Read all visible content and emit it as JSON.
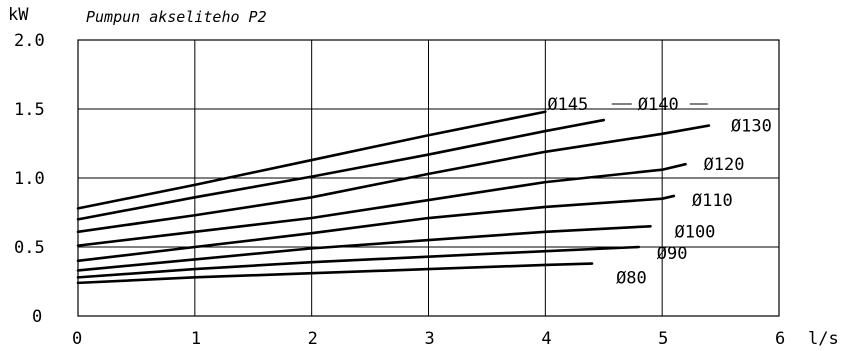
{
  "chart_data": {
    "type": "line",
    "title": "Pumpun akseliteho P2",
    "ylabel": "kW",
    "xlabel": "l/s",
    "xlim": [
      0,
      6
    ],
    "ylim": [
      0,
      2.0
    ],
    "grid": true,
    "x_ticks": [
      "0",
      "1",
      "2",
      "3",
      "4",
      "5",
      "6"
    ],
    "y_ticks": [
      "0",
      "0.5",
      "1.0",
      "1.5",
      "2.0"
    ],
    "series": [
      {
        "name": "Ø145",
        "x": [
          0,
          1,
          2,
          3,
          4
        ],
        "y": [
          0.78,
          0.95,
          1.13,
          1.31,
          1.48
        ]
      },
      {
        "name": "Ø140",
        "x": [
          0,
          1,
          2,
          3,
          4,
          4.5
        ],
        "y": [
          0.7,
          0.86,
          1.01,
          1.17,
          1.34,
          1.42
        ]
      },
      {
        "name": "Ø130",
        "x": [
          0,
          1,
          2,
          3,
          4,
          5,
          5.4
        ],
        "y": [
          0.61,
          0.73,
          0.86,
          1.03,
          1.19,
          1.32,
          1.38
        ]
      },
      {
        "name": "Ø120",
        "x": [
          0,
          1,
          2,
          3,
          4,
          5,
          5.2
        ],
        "y": [
          0.51,
          0.61,
          0.71,
          0.84,
          0.97,
          1.06,
          1.1
        ]
      },
      {
        "name": "Ø110",
        "x": [
          0,
          1,
          2,
          3,
          4,
          5,
          5.1
        ],
        "y": [
          0.4,
          0.5,
          0.6,
          0.71,
          0.79,
          0.85,
          0.87
        ]
      },
      {
        "name": "Ø100",
        "x": [
          0,
          1,
          2,
          3,
          4,
          4.9
        ],
        "y": [
          0.33,
          0.41,
          0.49,
          0.55,
          0.61,
          0.65
        ]
      },
      {
        "name": "Ø90",
        "x": [
          0,
          1,
          2,
          3,
          4,
          4.8
        ],
        "y": [
          0.28,
          0.34,
          0.39,
          0.43,
          0.47,
          0.5
        ]
      },
      {
        "name": "Ø80",
        "x": [
          0,
          1,
          2,
          3,
          4,
          4.4
        ],
        "y": [
          0.24,
          0.28,
          0.31,
          0.34,
          0.37,
          0.38
        ]
      }
    ]
  }
}
